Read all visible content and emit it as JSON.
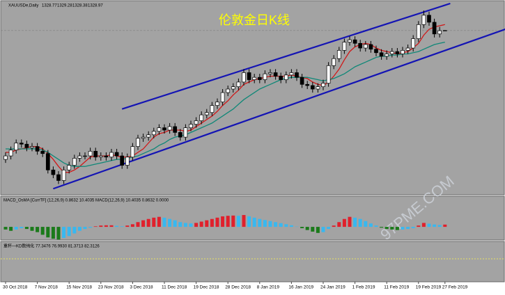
{
  "chart_data": {
    "type": "candlestick",
    "title": "伦敦金日K线",
    "symbol": "XAUUSDe,Daily",
    "watermark": "97PME.COM",
    "categories": [
      "30 Oct 2018",
      null,
      null,
      null,
      null,
      null,
      "7 Nov 2018",
      null,
      null,
      null,
      null,
      null,
      "15 Nov 2018",
      null,
      null,
      null,
      null,
      null,
      "23 Nov 2018",
      null,
      null,
      null,
      null,
      null,
      "3 Dec 2018",
      null,
      null,
      null,
      null,
      null,
      "11 Dec 2018",
      null,
      null,
      null,
      null,
      null,
      "19 Dec 2018",
      null,
      null,
      null,
      null,
      null,
      "28 Dec 2018",
      null,
      null,
      null,
      null,
      null,
      "8 Jan 2019",
      null,
      null,
      null,
      null,
      null,
      "16 Jan 2019",
      null,
      null,
      null,
      null,
      null,
      "24 Jan 2019",
      null,
      null,
      null,
      null,
      null,
      "1 Feb 2019",
      null,
      null,
      null,
      null,
      null,
      "11 Feb 2019",
      null,
      null,
      null,
      null,
      null,
      "19 Feb 2019",
      null,
      null,
      null,
      null,
      "27 Feb 2019"
    ],
    "open": [
      1219,
      1222,
      1227,
      1233,
      1232,
      1229,
      1230,
      1226,
      1224,
      1210,
      1206,
      1201,
      1210,
      1214,
      1220,
      1222,
      1222,
      1226,
      1221,
      1222,
      1221,
      1225,
      1222,
      1214,
      1221,
      1230,
      1237,
      1238,
      1240,
      1243,
      1246,
      1244,
      1247,
      1242,
      1238,
      1246,
      1249,
      1252,
      1257,
      1259,
      1265,
      1268,
      1276,
      1279,
      1281,
      1285,
      1293,
      1287,
      1289,
      1287,
      1292,
      1293,
      1290,
      1287,
      1291,
      1293,
      1289,
      1283,
      1282,
      1279,
      1281,
      1284,
      1299,
      1305,
      1312,
      1319,
      1321,
      1318,
      1314,
      1317,
      1313,
      1310,
      1307,
      1309,
      1311,
      1309,
      1312,
      1314,
      1322,
      1334,
      1342,
      1336,
      1326,
      1328.77
    ],
    "high": [
      1225,
      1230,
      1236,
      1236,
      1235,
      1233,
      1233,
      1229,
      1227,
      1213,
      1209,
      1213,
      1217,
      1223,
      1225,
      1225,
      1229,
      1229,
      1225,
      1225,
      1228,
      1228,
      1225,
      1224,
      1233,
      1240,
      1241,
      1243,
      1246,
      1249,
      1249,
      1250,
      1250,
      1245,
      1249,
      1252,
      1255,
      1260,
      1262,
      1268,
      1271,
      1279,
      1282,
      1284,
      1288,
      1296,
      1296,
      1292,
      1292,
      1295,
      1296,
      1296,
      1293,
      1294,
      1296,
      1296,
      1292,
      1286,
      1285,
      1284,
      1287,
      1302,
      1308,
      1315,
      1322,
      1324,
      1324,
      1321,
      1320,
      1320,
      1316,
      1313,
      1312,
      1314,
      1314,
      1315,
      1317,
      1325,
      1337,
      1346,
      1345,
      1339,
      1332,
      1329.28
    ],
    "low": [
      1216,
      1219,
      1224,
      1229,
      1226,
      1226,
      1223,
      1221,
      1207,
      1203,
      1198,
      1198,
      1207,
      1211,
      1217,
      1219,
      1219,
      1218,
      1218,
      1218,
      1218,
      1219,
      1211,
      1211,
      1218,
      1227,
      1234,
      1235,
      1237,
      1240,
      1241,
      1241,
      1239,
      1235,
      1235,
      1243,
      1246,
      1249,
      1254,
      1256,
      1262,
      1265,
      1273,
      1276,
      1278,
      1282,
      1284,
      1284,
      1284,
      1284,
      1289,
      1287,
      1284,
      1284,
      1288,
      1286,
      1280,
      1279,
      1276,
      1276,
      1278,
      1281,
      1296,
      1302,
      1309,
      1316,
      1315,
      1311,
      1311,
      1310,
      1307,
      1304,
      1304,
      1306,
      1306,
      1306,
      1309,
      1311,
      1319,
      1331,
      1333,
      1323,
      1323,
      1328.38
    ],
    "close": [
      1222,
      1227,
      1233,
      1232,
      1229,
      1230,
      1226,
      1224,
      1210,
      1206,
      1201,
      1210,
      1214,
      1220,
      1222,
      1222,
      1226,
      1221,
      1222,
      1221,
      1225,
      1222,
      1214,
      1221,
      1230,
      1237,
      1238,
      1240,
      1243,
      1246,
      1244,
      1247,
      1242,
      1238,
      1246,
      1249,
      1252,
      1257,
      1259,
      1265,
      1268,
      1276,
      1279,
      1281,
      1285,
      1293,
      1287,
      1289,
      1287,
      1292,
      1293,
      1290,
      1287,
      1291,
      1293,
      1289,
      1283,
      1282,
      1279,
      1281,
      1284,
      1299,
      1305,
      1312,
      1319,
      1321,
      1318,
      1314,
      1317,
      1313,
      1310,
      1307,
      1309,
      1311,
      1309,
      1312,
      1314,
      1322,
      1334,
      1342,
      1336,
      1326,
      1328.77,
      1328.97
    ],
    "up_color": "#ffffff",
    "down_color": "#000000",
    "ylim": [
      1190,
      1352
    ],
    "lines": [
      {
        "color": "#d01818",
        "values": [
          1225,
          1225,
          1227,
          1228,
          1229,
          1230,
          1230,
          1228,
          1224,
          1219,
          1213,
          1208,
          1208,
          1210,
          1213,
          1217,
          1221,
          1222,
          1222,
          1222,
          1223,
          1222,
          1221,
          1221,
          1222,
          1225,
          1228,
          1233,
          1238,
          1241,
          1242,
          1244,
          1244,
          1244,
          1243,
          1244,
          1247,
          1250,
          1253,
          1256,
          1260,
          1265,
          1269,
          1274,
          1278,
          1283,
          1285,
          1287,
          1288,
          1289,
          1290,
          1290,
          1290,
          1290,
          1291,
          1290,
          1289,
          1288,
          1285,
          1283,
          1282,
          1285,
          1290,
          1296,
          1304,
          1311,
          1315,
          1317,
          1318,
          1317,
          1314,
          1312,
          1311,
          1310,
          1309,
          1310,
          1311,
          1314,
          1318,
          1325,
          1330,
          1332,
          1333,
          1334
        ]
      },
      {
        "color": "#108878",
        "values": [
          1228,
          1228,
          1228,
          1228,
          1228,
          1228,
          1228,
          1227,
          1225,
          1222,
          1219,
          1216,
          1214,
          1213,
          1213,
          1213,
          1214,
          1215,
          1216,
          1217,
          1218,
          1219,
          1219,
          1220,
          1221,
          1222,
          1224,
          1226,
          1228,
          1231,
          1233,
          1236,
          1238,
          1239,
          1240,
          1242,
          1244,
          1246,
          1248,
          1250,
          1253,
          1256,
          1259,
          1262,
          1266,
          1270,
          1273,
          1276,
          1279,
          1281,
          1283,
          1285,
          1287,
          1288,
          1289,
          1289,
          1289,
          1289,
          1288,
          1287,
          1286,
          1287,
          1288,
          1290,
          1292,
          1295,
          1298,
          1300,
          1302,
          1304,
          1306,
          1307,
          1307,
          1308,
          1308,
          1309,
          1309,
          1310,
          1311,
          1313,
          1315,
          1317,
          1318,
          1319
        ]
      }
    ],
    "trendlines": [
      {
        "color": "#1414b4",
        "x": [
          22,
          84
        ],
        "y": [
          1262,
          1352
        ]
      },
      {
        "color": "#1414b4",
        "x": [
          9,
          95
        ],
        "y": [
          1194,
          1331
        ]
      }
    ],
    "macd": {
      "label": "MACD_OsMA [CurrTF] (12,26,9) 0.8632 10.4035 MACD(12,26,9) 10.4035 0.8632 0.0000",
      "values": [
        -1,
        -1.5,
        -1,
        -0.5,
        -0.8,
        -1.5,
        -2,
        -3,
        -4,
        -4.5,
        -4.8,
        -4.2,
        -3.5,
        -2.5,
        -1.5,
        -0.8,
        -0.3,
        0.2,
        0.5,
        0.6,
        0.6,
        0.4,
        0.2,
        0.5,
        1,
        1.8,
        2.5,
        3,
        3.5,
        3.8,
        3.5,
        3,
        2.5,
        1.8,
        1.5,
        1.3,
        1.5,
        2,
        2.5,
        3,
        3.5,
        4,
        4.2,
        4.3,
        4.2,
        4.5,
        4,
        3.5,
        3,
        2.6,
        2.2,
        1.8,
        1.4,
        1,
        0.6,
        0.1,
        -0.5,
        -1.2,
        -1.8,
        -2.3,
        -2,
        -0.8,
        0.5,
        1.8,
        3,
        3.8,
        3.5,
        3,
        2.2,
        1.3,
        0.5,
        -0.3,
        -0.8,
        -1,
        -1.2,
        -1,
        -0.8,
        -0.5,
        0.5,
        1.5,
        1.2,
        0.9,
        0.7,
        0.8632
      ],
      "ylim": [
        -5,
        9
      ],
      "rise_color": "#e0202c",
      "fall_color": "#1a7a1a",
      "turn_color": "#38b8f0"
    },
    "kd": {
      "label": "重杯—KD数纯化 77.3476 76.9930 81.3713 82.3126"
    }
  }
}
